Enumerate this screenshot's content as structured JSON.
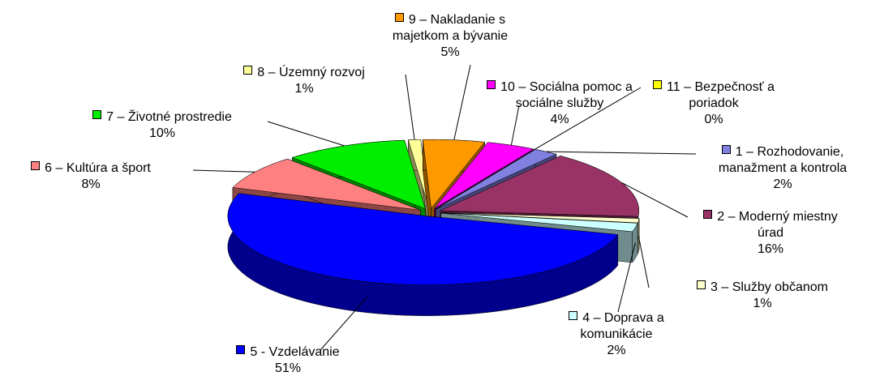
{
  "chart_data": {
    "type": "pie",
    "categories": [
      "1 – Rozhodovanie, manažment a kontrola",
      "2 – Moderný miestny úrad",
      "3 – Služby občanom",
      "4 – Doprava a komunikácie",
      "5 - Vzdelávanie",
      "6 – Kultúra a šport",
      "7 – Životné prostredie",
      "8 – Územný rozvoj",
      "9 – Nakladanie s majetkom a bývanie",
      "10 – Sociálna pomoc a sociálne služby",
      "11 – Bezpečnosť a poriadok"
    ],
    "values": [
      2,
      16,
      1,
      2,
      51,
      8,
      10,
      1,
      5,
      4,
      0
    ],
    "value_labels": [
      "2%",
      "16%",
      "1%",
      "2%",
      "51%",
      "8%",
      "10%",
      "1%",
      "5%",
      "4%",
      "0%"
    ],
    "colors": [
      "#8080e0",
      "#993366",
      "#ffffcc",
      "#ccffff",
      "#0000ff",
      "#ff8080",
      "#00ee00",
      "#ffff99",
      "#ff9900",
      "#ff00ff",
      "#ffff00"
    ]
  }
}
